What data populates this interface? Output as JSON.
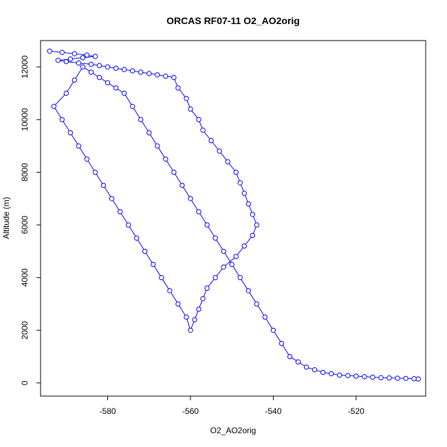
{
  "chart_data": {
    "type": "line",
    "title": "ORCAS RF07-11 O2_AO2orig",
    "xlabel": "O2_AO2orig",
    "ylabel": "Altitude (m)",
    "xlim": [
      -596.2,
      -503.2
    ],
    "ylim": [
      -500,
      13000
    ],
    "xticks": [
      -580,
      -560,
      -540,
      -520
    ],
    "yticks": [
      0,
      2000,
      4000,
      6000,
      8000,
      10000,
      12000
    ],
    "xtick_labels": [
      "-580",
      "-560",
      "-540",
      "-520"
    ],
    "ytick_labels": [
      "0",
      "2000",
      "4000",
      "6000",
      "8000",
      "10000",
      "12000"
    ],
    "grid": false,
    "legend": "none",
    "series_color": "#0000ff",
    "marker": "open-circle",
    "series": [
      {
        "x": [
          -594,
          -591,
          -588,
          -585,
          -583,
          -586,
          -589,
          -592,
          -590,
          -587,
          -584,
          -582,
          -580,
          -578,
          -576,
          -574,
          -572,
          -570,
          -568,
          -566,
          -564,
          -563,
          -561,
          -560,
          -558,
          -557,
          -555,
          -553,
          -551,
          -549,
          -548,
          -547,
          -546,
          -545,
          -544,
          -545,
          -547,
          -549,
          -552,
          -554,
          -556,
          -557,
          -558,
          -559,
          -560,
          -561,
          -563,
          -565,
          -567,
          -569,
          -571,
          -573,
          -575,
          -577,
          -579,
          -581,
          -583,
          -585,
          -587,
          -589,
          -591,
          -593,
          -590,
          -588,
          -586,
          -584,
          -582,
          -580,
          -578,
          -576,
          -574,
          -572,
          -570,
          -568,
          -566,
          -564,
          -562,
          -560,
          -558,
          -556,
          -554,
          -552,
          -550,
          -548,
          -546,
          -544,
          -542,
          -540,
          -538,
          -536,
          -534,
          -532,
          -530,
          -528,
          -526,
          -524,
          -522,
          -520,
          -518,
          -516,
          -514,
          -512,
          -510,
          -508,
          -506,
          -505
        ],
        "y": [
          12600,
          12550,
          12500,
          12450,
          12400,
          12350,
          12300,
          12250,
          12200,
          12150,
          12100,
          12050,
          12000,
          11950,
          11900,
          11850,
          11800,
          11750,
          11700,
          11650,
          11600,
          11200,
          10800,
          10400,
          10000,
          9600,
          9200,
          8800,
          8400,
          8000,
          7600,
          7200,
          6800,
          6400,
          6000,
          5600,
          5200,
          4800,
          4400,
          4000,
          3600,
          3200,
          2800,
          2400,
          2000,
          2500,
          3000,
          3500,
          4000,
          4500,
          5000,
          5500,
          6000,
          6500,
          7000,
          7500,
          8000,
          8500,
          9000,
          9500,
          10000,
          10500,
          11000,
          11500,
          12000,
          11800,
          11600,
          11400,
          11200,
          11000,
          10500,
          10000,
          9500,
          9000,
          8500,
          8000,
          7500,
          7000,
          6500,
          6000,
          5500,
          5000,
          4500,
          4000,
          3500,
          3000,
          2500,
          2000,
          1500,
          1000,
          800,
          600,
          500,
          400,
          350,
          300,
          280,
          260,
          240,
          220,
          200,
          190,
          180,
          170,
          160,
          150
        ]
      }
    ]
  }
}
